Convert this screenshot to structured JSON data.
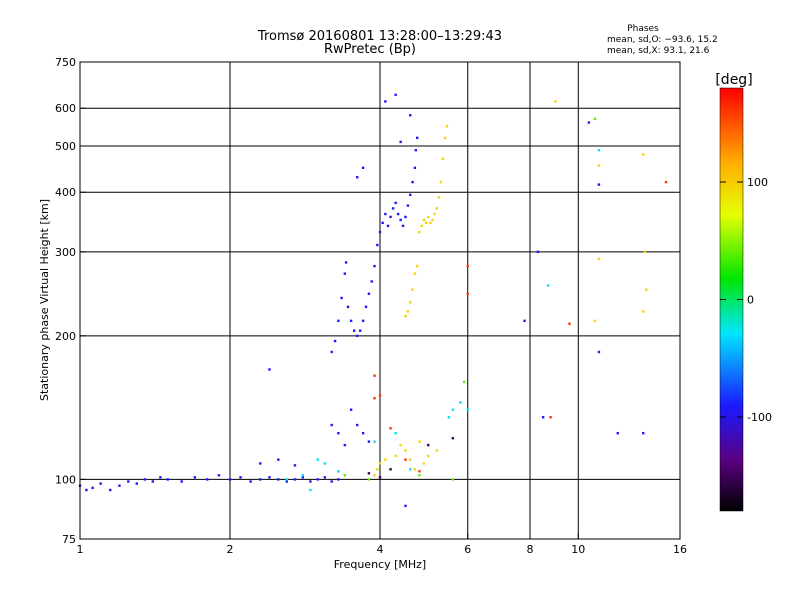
{
  "chart_data": {
    "type": "scatter",
    "title": "Tromsø 20160801 13:28:00–13:29:43",
    "subtitle": "RwPretec (Bp)",
    "xlabel": "Frequency [MHz]",
    "ylabel": "Stationary phase Virtual Height [km]",
    "x_scale": "log",
    "y_scale": "log",
    "xlim": [
      1,
      16
    ],
    "ylim": [
      75,
      750
    ],
    "x_ticks": [
      1,
      2,
      4,
      6,
      8,
      10,
      16
    ],
    "x_tick_labels": [
      "1",
      "2",
      "4",
      "6",
      "8",
      "10",
      "16"
    ],
    "y_ticks": [
      75,
      100,
      200,
      300,
      400,
      500,
      600,
      750
    ],
    "y_tick_labels": [
      "75",
      "100",
      "200",
      "300",
      "400",
      "500",
      "600",
      "750"
    ],
    "grid": true,
    "stats": {
      "heading": "Phases",
      "line_o": "mean, sd,O: −93.6, 15.2",
      "line_x": "mean, sd,X:  93.1, 21.6"
    },
    "colorbar": {
      "label": "[deg]",
      "range": [
        -180,
        180
      ],
      "ticks": [
        100,
        0,
        -100
      ],
      "tick_labels": [
        "100",
        "0",
        "-100"
      ]
    },
    "series": [
      {
        "phase_deg": -90,
        "points": [
          [
            1.0,
            97
          ],
          [
            1.03,
            95
          ],
          [
            1.06,
            96
          ],
          [
            1.1,
            98
          ],
          [
            1.15,
            95
          ],
          [
            1.2,
            97
          ],
          [
            1.25,
            99
          ],
          [
            1.3,
            98
          ],
          [
            1.35,
            100
          ],
          [
            1.4,
            99
          ],
          [
            1.45,
            101
          ],
          [
            1.5,
            100
          ],
          [
            1.6,
            99
          ],
          [
            1.7,
            101
          ],
          [
            1.8,
            100
          ],
          [
            1.9,
            102
          ],
          [
            2.0,
            100
          ],
          [
            2.1,
            101
          ],
          [
            2.2,
            99
          ],
          [
            2.3,
            100
          ],
          [
            2.4,
            101
          ],
          [
            2.5,
            100
          ],
          [
            2.6,
            99
          ],
          [
            2.7,
            100
          ],
          [
            2.8,
            101
          ],
          [
            2.9,
            99
          ],
          [
            3.0,
            100
          ],
          [
            3.1,
            101
          ],
          [
            3.2,
            99
          ],
          [
            3.3,
            100
          ],
          [
            2.4,
            170
          ],
          [
            2.3,
            108
          ],
          [
            2.5,
            110
          ],
          [
            2.7,
            107
          ],
          [
            3.2,
            185
          ],
          [
            3.25,
            195
          ],
          [
            3.3,
            215
          ],
          [
            3.35,
            240
          ],
          [
            3.4,
            270
          ],
          [
            3.42,
            285
          ],
          [
            3.45,
            230
          ],
          [
            3.5,
            215
          ],
          [
            3.55,
            205
          ],
          [
            3.6,
            200
          ],
          [
            3.65,
            205
          ],
          [
            3.7,
            215
          ],
          [
            3.75,
            230
          ],
          [
            3.8,
            245
          ],
          [
            3.85,
            260
          ],
          [
            3.9,
            280
          ],
          [
            3.95,
            310
          ],
          [
            4.0,
            330
          ],
          [
            4.05,
            345
          ],
          [
            4.1,
            360
          ],
          [
            4.15,
            340
          ],
          [
            4.2,
            355
          ],
          [
            4.25,
            370
          ],
          [
            4.3,
            380
          ],
          [
            4.35,
            360
          ],
          [
            4.4,
            350
          ],
          [
            4.45,
            340
          ],
          [
            4.5,
            355
          ],
          [
            4.55,
            375
          ],
          [
            4.6,
            395
          ],
          [
            4.65,
            420
          ],
          [
            4.7,
            450
          ],
          [
            4.72,
            490
          ],
          [
            4.75,
            520
          ],
          [
            4.1,
            620
          ],
          [
            4.3,
            640
          ],
          [
            3.5,
            140
          ],
          [
            3.6,
            130
          ],
          [
            3.7,
            125
          ],
          [
            3.8,
            120
          ],
          [
            3.4,
            118
          ],
          [
            3.3,
            125
          ],
          [
            3.2,
            130
          ],
          [
            10.5,
            560
          ],
          [
            11.0,
            415
          ],
          [
            13.5,
            125
          ],
          [
            12.0,
            125
          ],
          [
            4.4,
            510
          ],
          [
            4.6,
            580
          ],
          [
            3.7,
            450
          ],
          [
            3.6,
            430
          ],
          [
            4.5,
            88
          ],
          [
            11.0,
            185
          ],
          [
            8.5,
            135
          ],
          [
            8.3,
            300
          ],
          [
            7.8,
            215
          ]
        ]
      },
      {
        "phase_deg": 95,
        "points": [
          [
            4.5,
            220
          ],
          [
            4.55,
            225
          ],
          [
            4.6,
            235
          ],
          [
            4.65,
            250
          ],
          [
            4.7,
            270
          ],
          [
            4.75,
            280
          ],
          [
            4.8,
            330
          ],
          [
            4.85,
            340
          ],
          [
            4.9,
            350
          ],
          [
            4.95,
            345
          ],
          [
            5.0,
            355
          ],
          [
            5.05,
            345
          ],
          [
            5.1,
            350
          ],
          [
            5.15,
            360
          ],
          [
            5.2,
            370
          ],
          [
            5.25,
            390
          ],
          [
            5.3,
            420
          ],
          [
            5.35,
            470
          ],
          [
            5.4,
            520
          ],
          [
            5.45,
            550
          ],
          [
            3.9,
            102
          ],
          [
            3.95,
            105
          ],
          [
            4.0,
            108
          ],
          [
            4.1,
            110
          ],
          [
            4.2,
            105
          ],
          [
            4.3,
            112
          ],
          [
            4.4,
            118
          ],
          [
            4.5,
            115
          ],
          [
            4.6,
            110
          ],
          [
            4.7,
            105
          ],
          [
            4.8,
            120
          ],
          [
            4.9,
            108
          ],
          [
            5.0,
            112
          ],
          [
            5.2,
            115
          ],
          [
            9.0,
            620
          ],
          [
            11.0,
            290
          ],
          [
            10.8,
            215
          ],
          [
            13.5,
            480
          ],
          [
            13.6,
            300
          ],
          [
            13.7,
            250
          ],
          [
            13.5,
            225
          ],
          [
            11.0,
            455
          ]
        ]
      },
      {
        "phase_deg": -30,
        "points": [
          [
            5.8,
            145
          ],
          [
            6.0,
            140
          ],
          [
            5.6,
            140
          ],
          [
            5.5,
            135
          ],
          [
            2.8,
            102
          ],
          [
            2.6,
            100
          ],
          [
            3.3,
            104
          ],
          [
            3.9,
            120
          ],
          [
            4.3,
            125
          ],
          [
            8.7,
            255
          ],
          [
            11.0,
            490
          ],
          [
            4.6,
            105
          ],
          [
            3.0,
            110
          ],
          [
            3.1,
            108
          ],
          [
            2.9,
            95
          ]
        ]
      },
      {
        "phase_deg": 160,
        "points": [
          [
            3.9,
            165
          ],
          [
            4.0,
            150
          ],
          [
            4.2,
            128
          ],
          [
            4.5,
            110
          ],
          [
            4.8,
            104
          ],
          [
            6.0,
            245
          ],
          [
            6.0,
            280
          ],
          [
            8.8,
            135
          ],
          [
            9.6,
            212
          ],
          [
            15.0,
            420
          ],
          [
            3.9,
            148
          ]
        ]
      },
      {
        "phase_deg": 40,
        "points": [
          [
            5.9,
            160
          ],
          [
            10.8,
            570
          ],
          [
            4.8,
            102
          ],
          [
            5.6,
            100
          ],
          [
            3.8,
            100
          ],
          [
            3.4,
            102
          ]
        ]
      },
      {
        "phase_deg": -150,
        "points": [
          [
            3.8,
            103
          ],
          [
            4.0,
            101
          ],
          [
            4.2,
            105
          ],
          [
            5.0,
            118
          ],
          [
            5.6,
            122
          ]
        ]
      }
    ]
  }
}
